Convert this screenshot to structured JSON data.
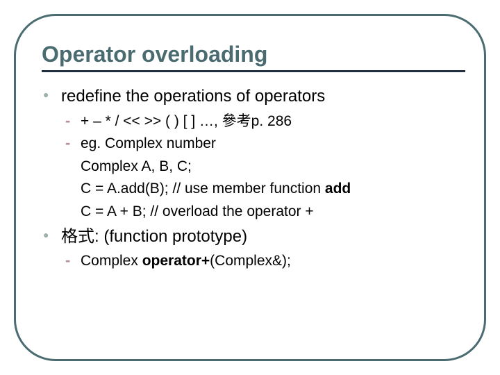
{
  "colors": {
    "frame_border": "#4a6b70",
    "title_text": "#4a6b70",
    "title_underline": "#203040",
    "bullet_lvl1": "#9bb0a6",
    "bullet_lvl2": "#b8909a",
    "body_text": "#000000",
    "background": "#ffffff"
  },
  "typography": {
    "title_fontsize": 32,
    "lvl1_fontsize": 24,
    "lvl2_fontsize": 21,
    "font_family": "Arial"
  },
  "layout": {
    "frame_radius": 60,
    "frame_border_width": 3,
    "title_underline_width": 3
  },
  "title": "Operator overloading",
  "items": [
    {
      "text": "redefine the operations of operators",
      "children": [
        {
          "type": "dashed",
          "text": "+   –   *   /   <<   >>  ( )   [ ]  …,  參考p. 286"
        },
        {
          "type": "dashed",
          "text": "eg.  Complex number"
        },
        {
          "type": "plain",
          "text": "Complex   A, B, C;"
        },
        {
          "type": "plain",
          "pre": " C = A.add(B);      // use member function ",
          "bold": "add",
          "post": ""
        },
        {
          "type": "plain",
          "text": " C = A + B;          // overload the operator +"
        }
      ]
    },
    {
      "text": "格式: (function prototype)",
      "children": [
        {
          "type": "dashed",
          "pre": "Complex  ",
          "bold": "operator+",
          "post": "(Complex&);"
        }
      ]
    }
  ]
}
